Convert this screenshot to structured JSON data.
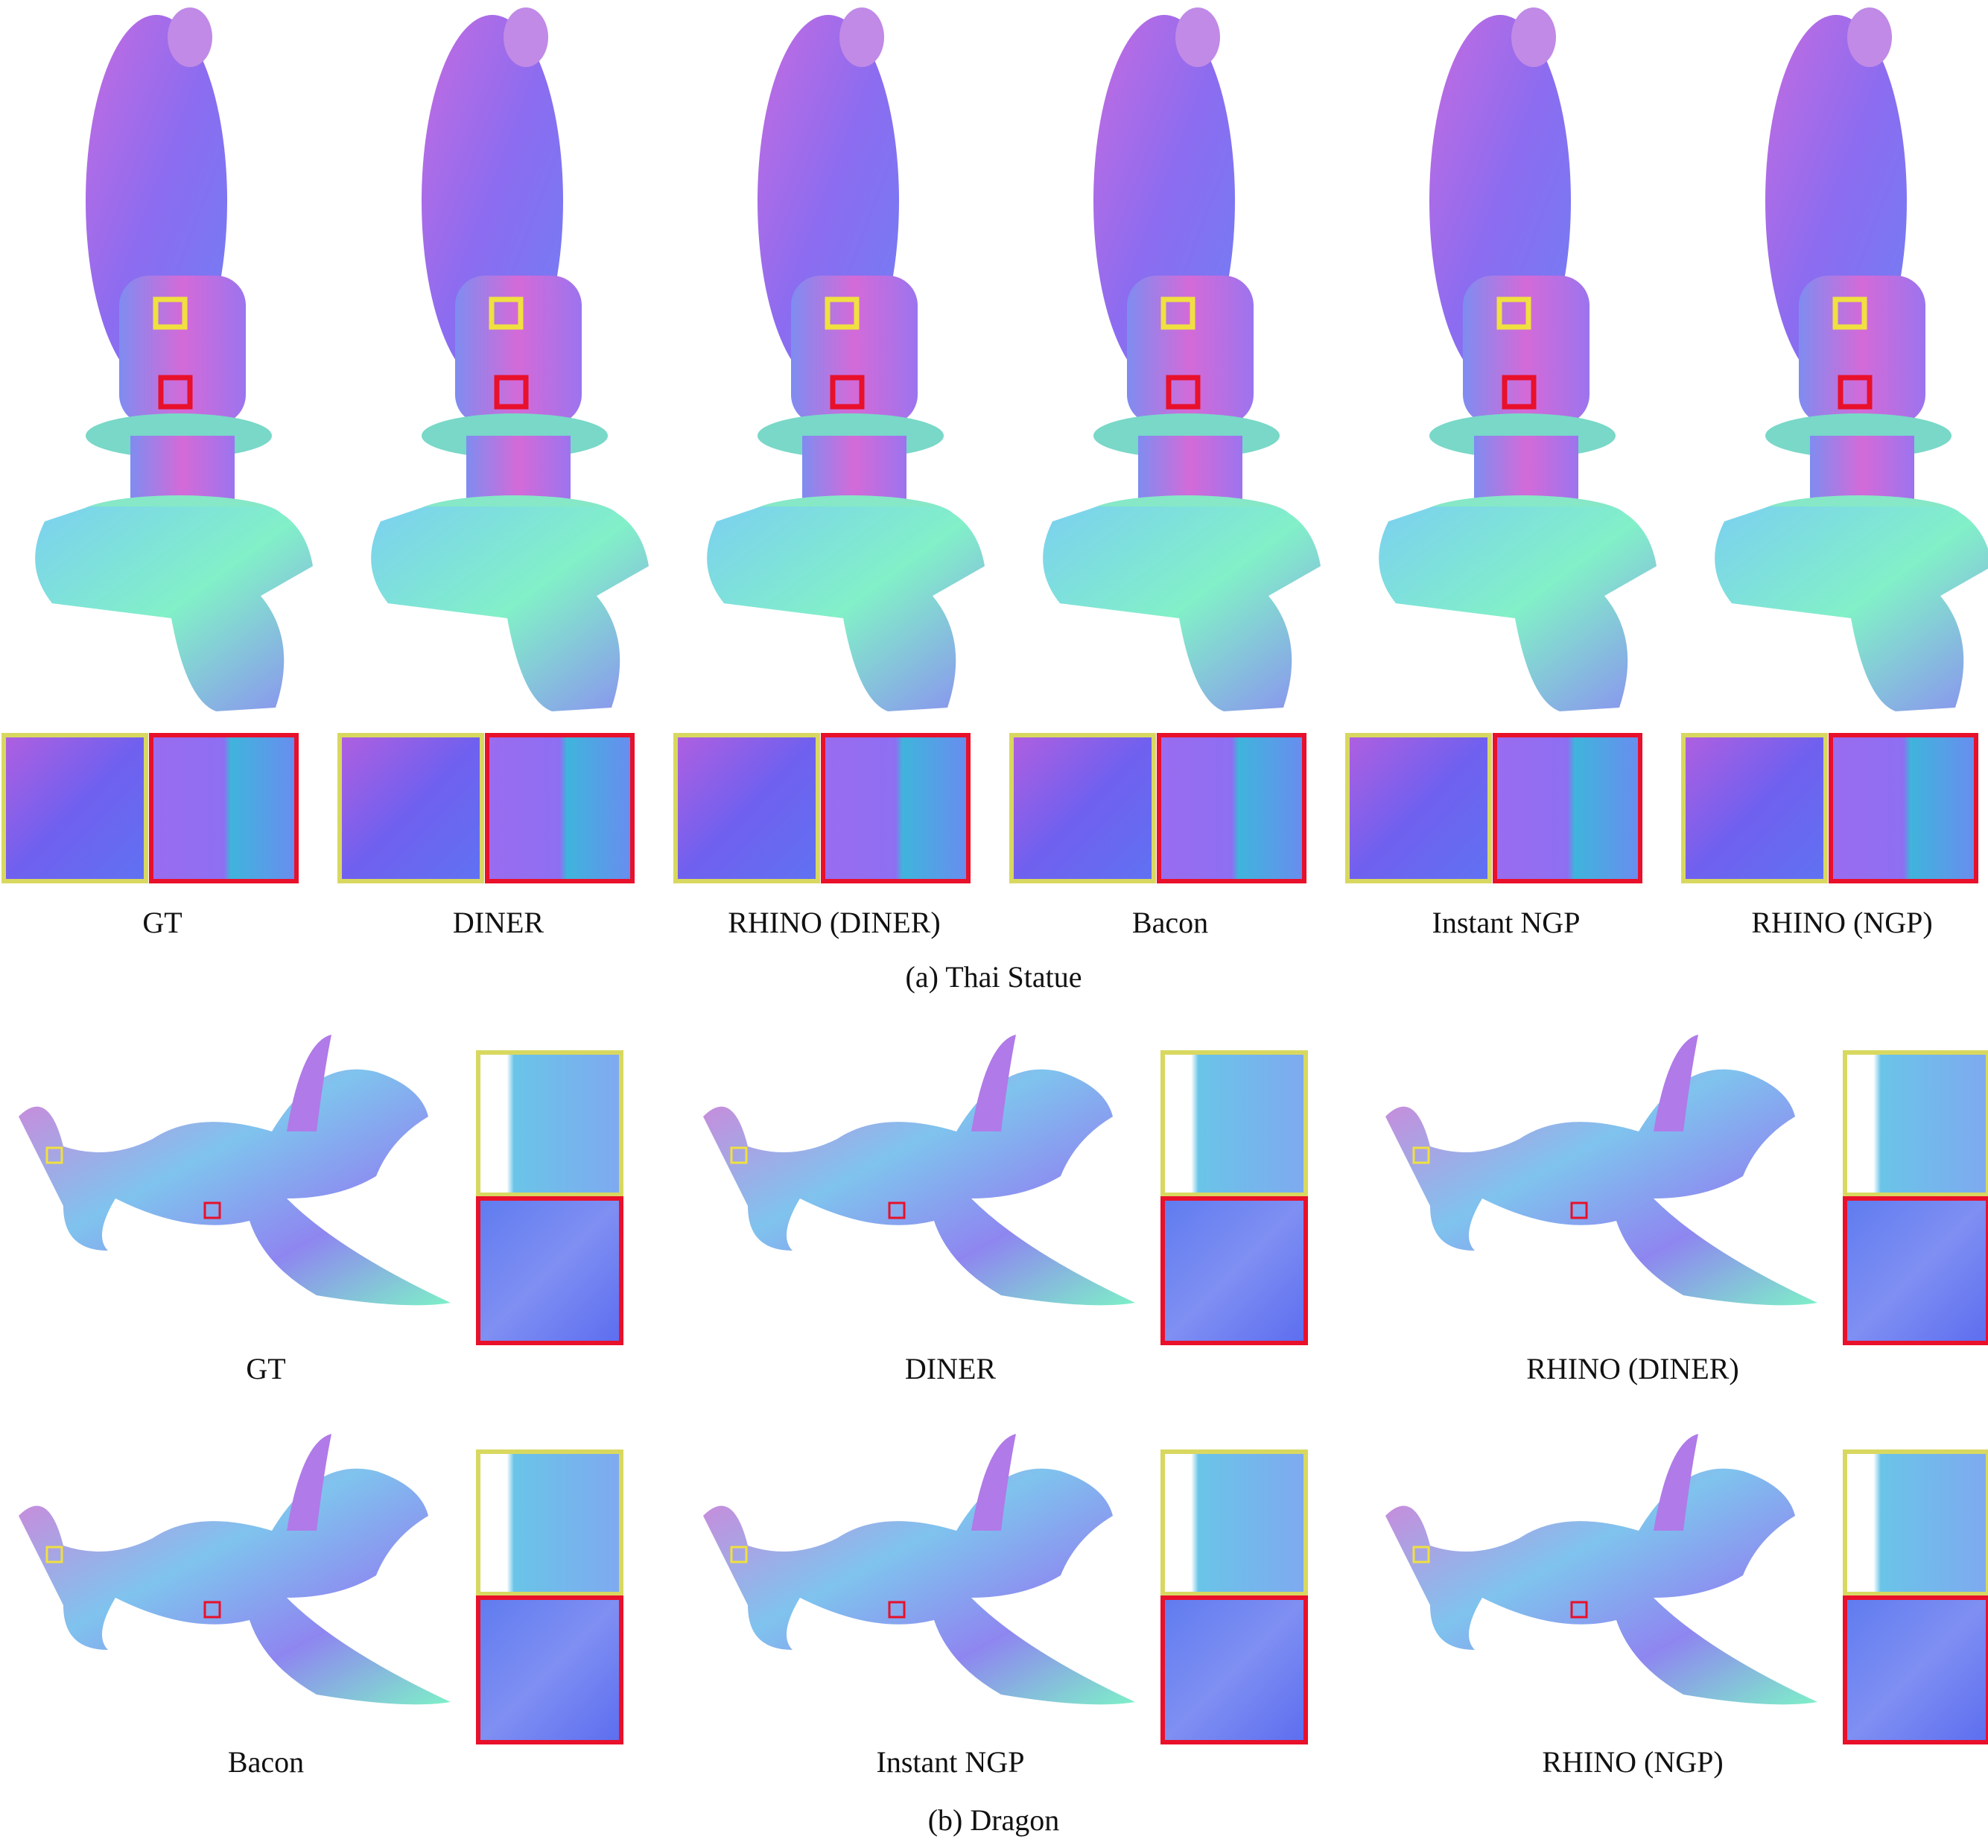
{
  "thai_statue": {
    "labels": [
      "GT",
      "DINER",
      "RHINO (DINER)",
      "Bacon",
      "Instant NGP",
      "RHINO (NGP)"
    ],
    "caption": "(a) Thai Statue"
  },
  "dragon": {
    "labels": [
      "GT",
      "DINER",
      "RHINO (DINER)",
      "Bacon",
      "Instant NGP",
      "RHINO (NGP)"
    ],
    "caption": "(b) Dragon"
  }
}
